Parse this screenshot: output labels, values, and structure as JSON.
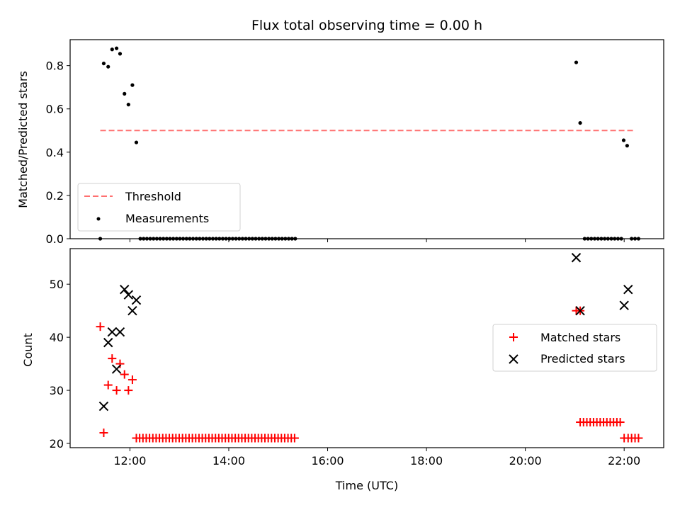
{
  "chart_data": [
    {
      "type": "scatter",
      "title": "Flux total observing time = 0.00 h",
      "xlabel": "",
      "ylabel": "Matched/Predicted stars",
      "ylim": [
        0,
        0.92
      ],
      "yticks": [
        "0.0",
        "0.2",
        "0.4",
        "0.6",
        "0.8"
      ],
      "xticks": [
        "12:00",
        "14:00",
        "16:00",
        "18:00",
        "20:00",
        "22:00"
      ],
      "xlim_hours": [
        10.79,
        22.8
      ],
      "threshold": {
        "name": "Threshold",
        "value": 0.5,
        "x_range": [
          11.4,
          22.22
        ],
        "color": "#ff7070"
      },
      "series": [
        {
          "name": "Measurements",
          "color": "#000000",
          "points": [
            [
              11.4,
              0.0
            ],
            [
              11.47,
              0.81
            ],
            [
              11.56,
              0.795
            ],
            [
              11.64,
              0.875
            ],
            [
              11.73,
              0.88
            ],
            [
              11.8,
              0.855
            ],
            [
              11.89,
              0.67
            ],
            [
              11.97,
              0.62
            ],
            [
              12.05,
              0.71
            ],
            [
              12.13,
              0.445
            ],
            [
              21.03,
              0.815
            ],
            [
              21.11,
              0.535
            ],
            [
              21.99,
              0.455
            ],
            [
              22.06,
              0.43
            ]
          ],
          "zero_runs": [
            [
              12.21,
              15.38,
              0.0667
            ],
            [
              21.2,
              21.98,
              0.0675
            ],
            [
              22.15,
              22.29,
              0.07
            ]
          ]
        }
      ]
    },
    {
      "type": "scatter",
      "title": "",
      "xlabel": "Time (UTC)",
      "ylabel": "Count",
      "ylim": [
        19.2,
        56.7
      ],
      "yticks": [
        "20",
        "30",
        "40",
        "50"
      ],
      "xticks": [
        "12:00",
        "14:00",
        "16:00",
        "18:00",
        "20:00",
        "22:00"
      ],
      "xlim_hours": [
        10.79,
        22.8
      ],
      "legend_placement": "center-right",
      "series": [
        {
          "name": "Matched stars",
          "marker": "plus",
          "color": "#ff0000",
          "points": [
            [
              11.4,
              42
            ],
            [
              11.47,
              22
            ],
            [
              11.56,
              31
            ],
            [
              11.64,
              36
            ],
            [
              11.73,
              30
            ],
            [
              11.8,
              35
            ],
            [
              11.89,
              33
            ],
            [
              11.97,
              30
            ],
            [
              12.05,
              32
            ],
            [
              21.03,
              45
            ],
            [
              21.11,
              45
            ],
            [
              22.0,
              21
            ],
            [
              22.08,
              21
            ]
          ],
          "runs": [
            [
              12.13,
              15.38,
              0.0667,
              21
            ],
            [
              21.11,
              21.98,
              0.0675,
              24
            ],
            [
              22.15,
              22.29,
              0.07,
              21
            ]
          ]
        },
        {
          "name": "Predicted stars",
          "marker": "x",
          "color": "#000000",
          "points": [
            [
              11.47,
              27
            ],
            [
              11.56,
              39
            ],
            [
              11.64,
              41
            ],
            [
              11.73,
              34
            ],
            [
              11.8,
              41
            ],
            [
              11.89,
              49
            ],
            [
              11.97,
              48
            ],
            [
              12.05,
              45
            ],
            [
              12.13,
              47
            ],
            [
              21.03,
              55
            ],
            [
              21.11,
              45
            ],
            [
              22.0,
              46
            ],
            [
              22.08,
              49
            ]
          ]
        }
      ]
    }
  ]
}
